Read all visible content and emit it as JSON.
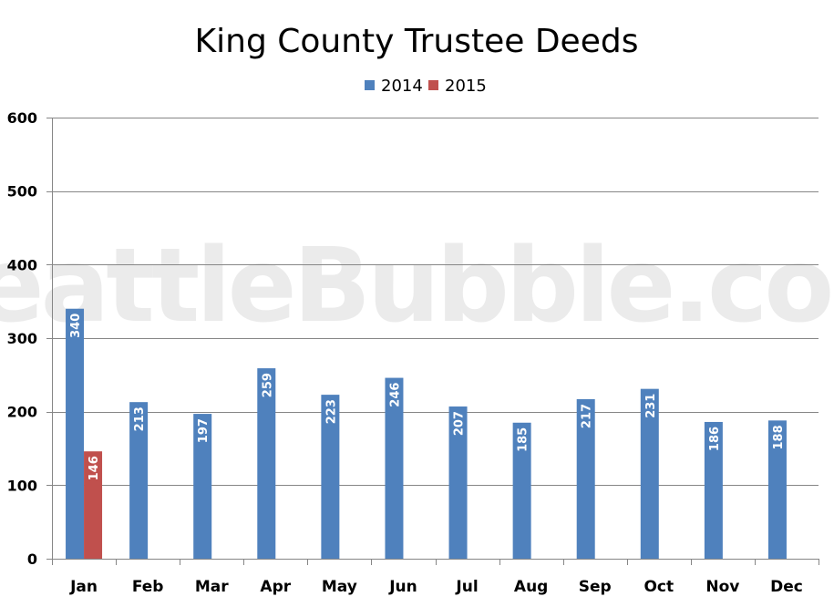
{
  "watermark": "SeattleBubble.com",
  "chart_data": {
    "type": "bar",
    "title": "King County Trustee Deeds",
    "xlabel": "",
    "ylabel": "",
    "categories": [
      "Jan",
      "Feb",
      "Mar",
      "Apr",
      "May",
      "Jun",
      "Jul",
      "Aug",
      "Sep",
      "Oct",
      "Nov",
      "Dec"
    ],
    "series": [
      {
        "name": "2014",
        "color": "#4f81bd",
        "values": [
          340,
          213,
          197,
          259,
          223,
          246,
          207,
          185,
          217,
          231,
          186,
          188
        ]
      },
      {
        "name": "2015",
        "color": "#c0504d",
        "values": [
          146,
          null,
          null,
          null,
          null,
          null,
          null,
          null,
          null,
          null,
          null,
          null
        ]
      }
    ],
    "ylim": [
      0,
      600
    ],
    "yticks": [
      0,
      100,
      200,
      300,
      400,
      500,
      600
    ],
    "grid": true,
    "legend_position": "top",
    "data_labels": "inside-end-rotated"
  }
}
